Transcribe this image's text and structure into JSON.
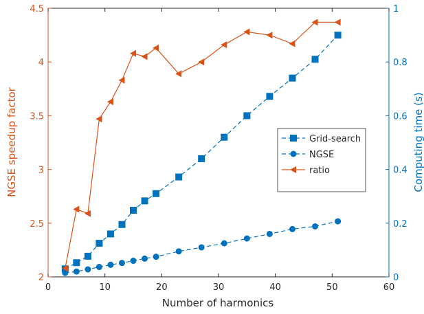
{
  "chart_data": {
    "type": "line",
    "xlabel": "Number of harmonics",
    "ylabel_left": "NGSE speedup factor",
    "ylabel_right": "Computing time (s)",
    "xlim": [
      0,
      60
    ],
    "ylim_left": [
      2,
      4.5
    ],
    "ylim_right": [
      0,
      1
    ],
    "x_ticks": [
      "0",
      "10",
      "20",
      "30",
      "40",
      "50",
      "60"
    ],
    "y_left_ticks": [
      "2",
      "2.5",
      "3",
      "3.5",
      "4",
      "4.5"
    ],
    "y_right_ticks": [
      "0",
      "0.2",
      "0.4",
      "0.6",
      "0.8",
      "1"
    ],
    "grid": false,
    "legend_position": "center-right",
    "colors": {
      "left_axis": "#D95319",
      "right_axis": "#0072BD"
    },
    "series": [
      {
        "name": "Grid-search",
        "axis": "right",
        "marker": "square",
        "line": "dashed",
        "color": "#0072BD",
        "x": [
          3,
          5,
          7,
          9,
          11,
          13,
          15,
          17,
          19,
          23,
          27,
          31,
          35,
          39,
          43,
          47,
          51
        ],
        "y": [
          0.03,
          0.053,
          0.077,
          0.125,
          0.16,
          0.195,
          0.248,
          0.283,
          0.31,
          0.372,
          0.44,
          0.52,
          0.6,
          0.672,
          0.74,
          0.81,
          0.9
        ]
      },
      {
        "name": "NGSE",
        "axis": "right",
        "marker": "circle",
        "line": "dashed",
        "color": "#0072BD",
        "x": [
          3,
          5,
          7,
          9,
          11,
          13,
          15,
          17,
          19,
          23,
          27,
          31,
          35,
          39,
          43,
          47,
          51
        ],
        "y": [
          0.015,
          0.02,
          0.028,
          0.037,
          0.045,
          0.052,
          0.06,
          0.068,
          0.075,
          0.095,
          0.11,
          0.125,
          0.143,
          0.16,
          0.178,
          0.188,
          0.207
        ]
      },
      {
        "name": "ratio",
        "axis": "left",
        "marker": "triangle-left",
        "line": "solid",
        "color": "#D95319",
        "x": [
          3,
          5,
          7,
          9,
          11,
          13,
          15,
          17,
          19,
          23,
          27,
          31,
          35,
          39,
          43,
          47,
          51
        ],
        "y": [
          2.08,
          2.63,
          2.59,
          3.47,
          3.63,
          3.83,
          4.08,
          4.05,
          4.13,
          3.89,
          4.0,
          4.16,
          4.28,
          4.25,
          4.17,
          4.37,
          4.37
        ]
      }
    ]
  }
}
